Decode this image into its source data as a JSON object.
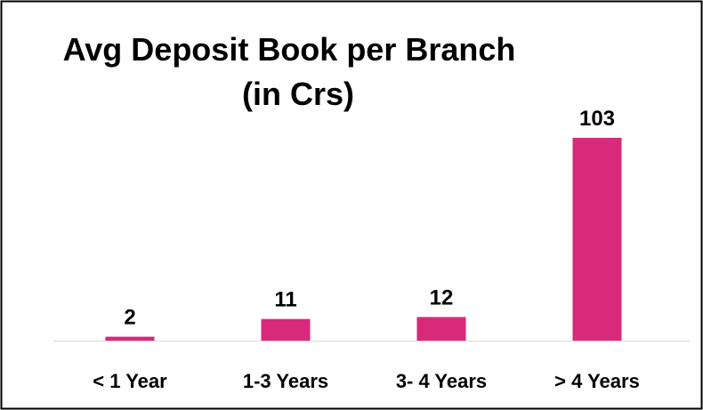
{
  "chart_data": {
    "type": "bar",
    "title": "Avg Deposit Book per Branch",
    "subtitle": "(in Crs)",
    "categories": [
      "< 1 Year",
      "1-3 Years",
      "3- 4 Years",
      "> 4 Years"
    ],
    "values": [
      2,
      11,
      12,
      103
    ],
    "color": "#d9297a"
  }
}
